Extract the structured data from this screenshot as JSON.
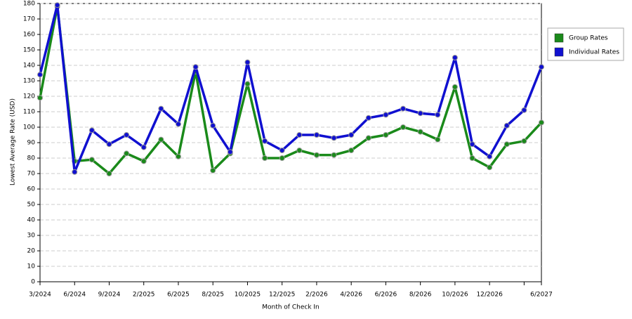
{
  "chart_data": {
    "type": "line",
    "x_label": "Month of Check In",
    "y_label": "Lowest Average Rate (USD)",
    "categories": [
      "3/2024",
      null,
      "6/2024",
      null,
      "9/2024",
      null,
      "2/2025",
      null,
      "6/2025",
      null,
      "8/2025",
      null,
      "10/2025",
      null,
      "12/2025",
      null,
      "2/2026",
      null,
      "4/2026",
      null,
      "6/2026",
      null,
      "8/2026",
      null,
      "10/2026",
      null,
      "12/2026",
      null,
      null,
      "6/2027"
    ],
    "series": [
      {
        "name": "Group Rates",
        "color": "#1a8a1a",
        "values": [
          119,
          178,
          78,
          79,
          70,
          83,
          78,
          92,
          81,
          136,
          72,
          83,
          128,
          80,
          80,
          85,
          82,
          82,
          85,
          93,
          95,
          100,
          97,
          92,
          126,
          80,
          74,
          89,
          91,
          103
        ]
      },
      {
        "name": "Individual Rates",
        "color": "#1010d0",
        "values": [
          134,
          179,
          71,
          98,
          89,
          95,
          87,
          112,
          102,
          139,
          101,
          84,
          142,
          91,
          85,
          95,
          95,
          93,
          95,
          106,
          108,
          112,
          109,
          108,
          145,
          89,
          81,
          101,
          111,
          139
        ]
      }
    ],
    "ylim": [
      0,
      180
    ],
    "yticks": [
      0,
      10,
      20,
      30,
      40,
      50,
      60,
      70,
      80,
      90,
      100,
      110,
      120,
      130,
      140,
      150,
      160,
      170,
      180
    ],
    "grid": true,
    "legend": "right"
  }
}
